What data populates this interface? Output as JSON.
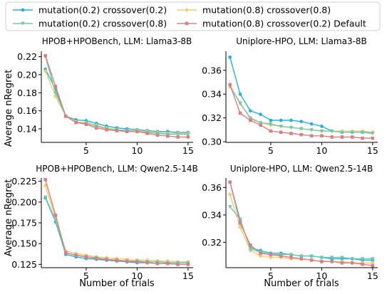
{
  "legend": {
    "entries": [
      {
        "label": "mutation(0.2) crossover(0.2)",
        "color": "#2ab0dc",
        "marker": "circle"
      },
      {
        "label": "mutation(0.8) crossover(0.8)",
        "color": "#f2cc6e",
        "marker": "diamond"
      },
      {
        "label": "mutation(0.2) crossover(0.8)",
        "color": "#72c9b0",
        "marker": "tri-down"
      },
      {
        "label": "mutation(0.8) crossover(0.2) Default",
        "color": "#d98080",
        "marker": "square"
      }
    ]
  },
  "shared_labels": {
    "ylabel": "Average nRegret",
    "xlabel": "Number of trials"
  },
  "chart_data": [
    {
      "type": "line",
      "title": "HPOB+HPOBench, LLM: Llama3-8B",
      "x": [
        1,
        2,
        3,
        4,
        5,
        6,
        7,
        8,
        9,
        10,
        11,
        12,
        13,
        14,
        15
      ],
      "xlim": [
        0.6,
        15.5
      ],
      "ylim": [
        0.125,
        0.226
      ],
      "xticks": [
        5,
        10,
        15
      ],
      "yticks": [
        0.14,
        0.16,
        0.18,
        0.2,
        0.22
      ],
      "ytick_labels": [
        "0.14",
        "0.16",
        "0.18",
        "0.20",
        "0.22"
      ],
      "series": [
        {
          "values": [
            0.206,
            0.184,
            0.154,
            0.15,
            0.149,
            0.146,
            0.143,
            0.141,
            0.14,
            0.139,
            0.138,
            0.137,
            0.137,
            0.136,
            0.136
          ]
        },
        {
          "values": [
            0.204,
            0.176,
            0.154,
            0.148,
            0.147,
            0.144,
            0.141,
            0.139,
            0.138,
            0.138,
            0.137,
            0.136,
            0.135,
            0.135,
            0.135
          ]
        },
        {
          "values": [
            0.22,
            0.18,
            0.154,
            0.147,
            0.146,
            0.143,
            0.14,
            0.139,
            0.138,
            0.137,
            0.136,
            0.135,
            0.134,
            0.134,
            0.134
          ]
        },
        {
          "values": [
            0.221,
            0.187,
            0.154,
            0.147,
            0.145,
            0.141,
            0.139,
            0.138,
            0.137,
            0.137,
            0.135,
            0.133,
            0.132,
            0.131,
            0.131
          ]
        }
      ]
    },
    {
      "type": "line",
      "title": "Uniplore-HPO, LLM: Llama3-8B",
      "x": [
        1,
        2,
        3,
        4,
        5,
        6,
        7,
        8,
        9,
        10,
        11,
        12,
        13,
        14,
        15
      ],
      "xlim": [
        0.6,
        15.5
      ],
      "ylim": [
        0.2995,
        0.376
      ],
      "xticks": [
        5,
        10,
        15
      ],
      "yticks": [
        0.3,
        0.32,
        0.34,
        0.36
      ],
      "ytick_labels": [
        "0.30",
        "0.32",
        "0.34",
        "0.36"
      ],
      "series": [
        {
          "values": [
            0.371,
            0.34,
            0.326,
            0.323,
            0.318,
            0.318,
            0.318,
            0.317,
            0.315,
            0.313,
            0.309,
            0.308,
            0.308,
            0.308,
            0.308
          ]
        },
        {
          "values": [
            0.346,
            0.333,
            0.319,
            0.316,
            0.314,
            0.313,
            0.312,
            0.311,
            0.31,
            0.309,
            0.309,
            0.309,
            0.309,
            0.309,
            0.308
          ]
        },
        {
          "values": [
            0.347,
            0.332,
            0.32,
            0.316,
            0.315,
            0.313,
            0.312,
            0.311,
            0.31,
            0.309,
            0.309,
            0.308,
            0.308,
            0.308,
            0.307
          ]
        },
        {
          "values": [
            0.348,
            0.324,
            0.318,
            0.314,
            0.309,
            0.308,
            0.307,
            0.306,
            0.305,
            0.305,
            0.304,
            0.304,
            0.304,
            0.303,
            0.303
          ]
        }
      ]
    },
    {
      "type": "line",
      "title": "HPOB+HPOBench, LLM: Qwen2.5-14B",
      "x": [
        1,
        2,
        3,
        4,
        5,
        6,
        7,
        8,
        9,
        10,
        11,
        12,
        13,
        14,
        15
      ],
      "xlim": [
        0.6,
        15.5
      ],
      "ylim": [
        0.121,
        0.229
      ],
      "xticks": [
        5,
        10,
        15
      ],
      "yticks": [
        0.125,
        0.15,
        0.175,
        0.2,
        0.225
      ],
      "ytick_labels": [
        "0.125",
        "0.150",
        "0.175",
        "0.200",
        "0.225"
      ],
      "series": [
        {
          "values": [
            0.205,
            0.176,
            0.137,
            0.134,
            0.132,
            0.131,
            0.13,
            0.129,
            0.128,
            0.127,
            0.127,
            0.126,
            0.126,
            0.125,
            0.125
          ]
        },
        {
          "values": [
            0.22,
            0.18,
            0.141,
            0.138,
            0.136,
            0.134,
            0.133,
            0.132,
            0.131,
            0.13,
            0.13,
            0.129,
            0.129,
            0.128,
            0.128
          ]
        },
        {
          "values": [
            0.206,
            0.178,
            0.139,
            0.136,
            0.134,
            0.133,
            0.131,
            0.13,
            0.129,
            0.129,
            0.128,
            0.128,
            0.127,
            0.127,
            0.127
          ]
        },
        {
          "values": [
            0.227,
            0.184,
            0.139,
            0.136,
            0.134,
            0.132,
            0.131,
            0.13,
            0.129,
            0.128,
            0.127,
            0.126,
            0.126,
            0.125,
            0.125
          ]
        }
      ]
    },
    {
      "type": "line",
      "title": "Uniplore-HPO, LLM: Qwen2.5-14B",
      "x": [
        1,
        2,
        3,
        4,
        5,
        6,
        7,
        8,
        9,
        10,
        11,
        12,
        13,
        14,
        15
      ],
      "xlim": [
        0.6,
        15.5
      ],
      "ylim": [
        0.3015,
        0.367
      ],
      "xticks": [
        5,
        10,
        15
      ],
      "yticks": [
        0.32,
        0.34,
        0.36
      ],
      "ytick_labels": [
        "0.32",
        "0.34",
        "0.36"
      ],
      "series": [
        {
          "values": [
            0.364,
            0.336,
            0.316,
            0.314,
            0.312,
            0.312,
            0.311,
            0.31,
            0.31,
            0.309,
            0.308,
            0.308,
            0.308,
            0.307,
            0.307
          ]
        },
        {
          "values": [
            0.355,
            0.331,
            0.314,
            0.31,
            0.309,
            0.309,
            0.308,
            0.308,
            0.307,
            0.306,
            0.306,
            0.306,
            0.305,
            0.305,
            0.305
          ]
        },
        {
          "values": [
            0.346,
            0.337,
            0.315,
            0.313,
            0.311,
            0.311,
            0.311,
            0.31,
            0.31,
            0.309,
            0.309,
            0.309,
            0.308,
            0.308,
            0.308
          ]
        },
        {
          "values": [
            0.364,
            0.334,
            0.318,
            0.312,
            0.311,
            0.31,
            0.309,
            0.308,
            0.307,
            0.306,
            0.306,
            0.305,
            0.305,
            0.304,
            0.303
          ]
        }
      ]
    }
  ]
}
